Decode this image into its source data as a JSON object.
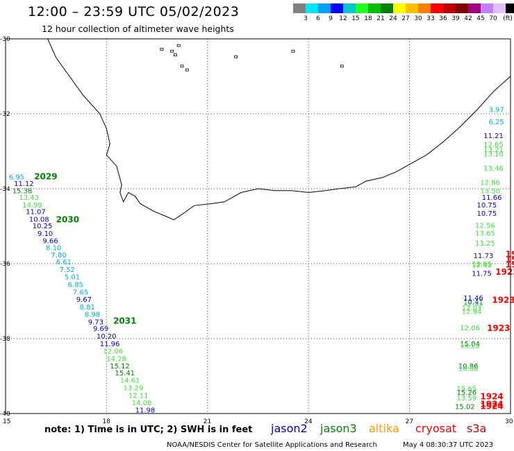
{
  "header": {
    "title": "12:00 – 23:59 UTC 05/02/2023",
    "subtitle": "12 hour collection of altimeter wave heights"
  },
  "legend": {
    "colors": [
      "#808080",
      "#00e5ff",
      "#00a0ff",
      "#0000ff",
      "#00c8c8",
      "#20ff20",
      "#00c000",
      "#008000",
      "#ffff00",
      "#ffc000",
      "#ff8000",
      "#ff0000",
      "#c00000",
      "#800000",
      "#a00080",
      "#c080ff",
      "#e0c0ff",
      "#000000"
    ],
    "labels": [
      "3",
      "6",
      "9",
      "12",
      "15",
      "18",
      "21",
      "24",
      "27",
      "30",
      "33",
      "36",
      "39",
      "42",
      "45",
      "70",
      "(ft)"
    ]
  },
  "axes": {
    "lon_ticks": [
      "15",
      "18",
      "21",
      "24",
      "27",
      "30"
    ],
    "lat_ticks": [
      "-30",
      "-32",
      "-34",
      "-36",
      "-38",
      "-40"
    ]
  },
  "colors": {
    "jason2": "#0000c8",
    "jason3": "#008000",
    "altika": "#ff9900",
    "cryosat": "#ff0000",
    "s3a": "#c80000",
    "lightgreen": "#40e040",
    "cyan": "#00b0e0"
  },
  "track_west": [
    {
      "v": "6.95",
      "c": "cyan",
      "lon": 15.1,
      "lat": -33.75
    },
    {
      "v": "11.12",
      "c": "jason2",
      "lon": 15.25,
      "lat": -33.93
    },
    {
      "v": "15.38",
      "c": "jason3",
      "lon": 15.2,
      "lat": -34.12
    },
    {
      "v": "13.43",
      "c": "lightgreen",
      "lon": 15.4,
      "lat": -34.3
    },
    {
      "v": "14.99",
      "c": "lightgreen",
      "lon": 15.5,
      "lat": -34.5
    },
    {
      "v": "11.07",
      "c": "jason2",
      "lon": 15.6,
      "lat": -34.68
    },
    {
      "v": "10.08",
      "c": "jason2",
      "lon": 15.7,
      "lat": -34.88
    },
    {
      "v": "10.25",
      "c": "jason2",
      "lon": 15.8,
      "lat": -35.06
    },
    {
      "v": "9.10",
      "c": "jason2",
      "lon": 15.95,
      "lat": -35.26
    },
    {
      "v": "9.66",
      "c": "jason2",
      "lon": 16.1,
      "lat": -35.45
    },
    {
      "v": "8.10",
      "c": "cyan",
      "lon": 16.2,
      "lat": -35.64
    },
    {
      "v": "7.80",
      "c": "cyan",
      "lon": 16.35,
      "lat": -35.83
    },
    {
      "v": "6.61",
      "c": "cyan",
      "lon": 16.5,
      "lat": -36.02
    },
    {
      "v": "7.52",
      "c": "cyan",
      "lon": 16.6,
      "lat": -36.22
    },
    {
      "v": "5.01",
      "c": "cyan",
      "lon": 16.75,
      "lat": -36.42
    },
    {
      "v": "6.85",
      "c": "cyan",
      "lon": 16.85,
      "lat": -36.62
    },
    {
      "v": "7.65",
      "c": "cyan",
      "lon": 17.0,
      "lat": -36.82
    },
    {
      "v": "9.67",
      "c": "jason2",
      "lon": 17.1,
      "lat": -37.02
    },
    {
      "v": "8.81",
      "c": "cyan",
      "lon": 17.2,
      "lat": -37.22
    },
    {
      "v": "8.98",
      "c": "cyan",
      "lon": 17.35,
      "lat": -37.42
    },
    {
      "v": "9.73",
      "c": "jason2",
      "lon": 17.45,
      "lat": -37.62
    },
    {
      "v": "9.69",
      "c": "jason2",
      "lon": 17.6,
      "lat": -37.8
    },
    {
      "v": "10.20",
      "c": "jason2",
      "lon": 17.7,
      "lat": -38.0
    },
    {
      "v": "11.96",
      "c": "jason2",
      "lon": 17.8,
      "lat": -38.2
    },
    {
      "v": "12.06",
      "c": "lightgreen",
      "lon": 17.9,
      "lat": -38.4
    },
    {
      "v": "14.28",
      "c": "lightgreen",
      "lon": 18.0,
      "lat": -38.6
    },
    {
      "v": "15.12",
      "c": "jason3",
      "lon": 18.1,
      "lat": -38.8
    },
    {
      "v": "15.41",
      "c": "jason3",
      "lon": 18.25,
      "lat": -38.98
    },
    {
      "v": "14.61",
      "c": "lightgreen",
      "lon": 18.4,
      "lat": -39.18
    },
    {
      "v": "13.29",
      "c": "lightgreen",
      "lon": 18.5,
      "lat": -39.38
    },
    {
      "v": "12.11",
      "c": "lightgreen",
      "lon": 18.65,
      "lat": -39.58
    },
    {
      "v": "14.08",
      "c": "lightgreen",
      "lon": 18.75,
      "lat": -39.78
    },
    {
      "v": "11.98",
      "c": "jason2",
      "lon": 18.85,
      "lat": -39.97
    }
  ],
  "track_west_times": [
    {
      "t": "2029",
      "lon": 15.85,
      "lat": -33.75
    },
    {
      "t": "2030",
      "lon": 16.5,
      "lat": -34.9
    },
    {
      "t": "2031",
      "lon": 18.2,
      "lat": -37.6
    }
  ],
  "track_east": [
    {
      "v": "3.97",
      "c": "cyan",
      "lon": 29.35,
      "lat": -31.95
    },
    {
      "v": "6.25",
      "c": "cyan",
      "lon": 29.35,
      "lat": -32.28
    },
    {
      "v": "11.21",
      "c": "jason2",
      "lon": 29.2,
      "lat": -32.65
    },
    {
      "v": "12.65",
      "c": "lightgreen",
      "lon": 29.2,
      "lat": -32.88
    },
    {
      "v": "13.21",
      "c": "lightgreen",
      "lon": 29.2,
      "lat": -33.02
    },
    {
      "v": "13.10",
      "c": "lightgreen",
      "lon": 29.2,
      "lat": -33.14
    },
    {
      "v": "13.46",
      "c": "lightgreen",
      "lon": 29.2,
      "lat": -33.52
    },
    {
      "v": "12.86",
      "c": "lightgreen",
      "lon": 29.1,
      "lat": -33.9
    },
    {
      "v": "13.50",
      "c": "lightgreen",
      "lon": 29.1,
      "lat": -34.12
    },
    {
      "v": "11.66",
      "c": "jason2",
      "lon": 29.15,
      "lat": -34.3
    },
    {
      "v": "10.75",
      "c": "jason2",
      "lon": 29.0,
      "lat": -34.5
    },
    {
      "v": "10.75",
      "c": "jason2",
      "lon": 29.0,
      "lat": -34.72
    },
    {
      "v": "12.56",
      "c": "lightgreen",
      "lon": 28.95,
      "lat": -35.05
    },
    {
      "v": "13.65",
      "c": "lightgreen",
      "lon": 28.95,
      "lat": -35.25
    },
    {
      "v": "13.25",
      "c": "lightgreen",
      "lon": 28.95,
      "lat": -35.52
    },
    {
      "v": "11.73",
      "c": "jason2",
      "lon": 28.9,
      "lat": -35.85
    },
    {
      "v": "12.65",
      "c": "lightgreen",
      "lon": 28.85,
      "lat": -36.07
    },
    {
      "v": "12.43",
      "c": "lightgreen",
      "lon": 28.85,
      "lat": -36.1
    },
    {
      "v": "11.75",
      "c": "jason2",
      "lon": 28.85,
      "lat": -36.32
    },
    {
      "v": "11.46",
      "c": "jason2",
      "lon": 28.6,
      "lat": -36.98
    },
    {
      "v": "10.41",
      "c": "jason2",
      "lon": 28.6,
      "lat": -37.08
    },
    {
      "v": "12.01",
      "c": "lightgreen",
      "lon": 28.6,
      "lat": -37.12
    },
    {
      "v": "12.03",
      "c": "lightgreen",
      "lon": 28.55,
      "lat": -37.25
    },
    {
      "v": "12.94",
      "c": "lightgreen",
      "lon": 28.55,
      "lat": -37.34
    },
    {
      "v": "12.06",
      "c": "lightgreen",
      "lon": 28.5,
      "lat": -37.78
    },
    {
      "v": "15.04",
      "c": "jason3",
      "lon": 28.5,
      "lat": -38.2
    },
    {
      "v": "15.28",
      "c": "lightgreen",
      "lon": 28.5,
      "lat": -38.25
    },
    {
      "v": "10.86",
      "c": "jason3",
      "lon": 28.45,
      "lat": -38.8
    },
    {
      "v": "10.86",
      "c": "lightgreen",
      "lon": 28.45,
      "lat": -38.86
    },
    {
      "v": "15.65",
      "c": "lightgreen",
      "lon": 28.4,
      "lat": -39.4
    },
    {
      "v": "15.26",
      "c": "jason3",
      "lon": 28.4,
      "lat": -39.5
    },
    {
      "v": "13.59",
      "c": "lightgreen",
      "lon": 28.4,
      "lat": -39.65
    },
    {
      "v": "15.02",
      "c": "jason3",
      "lon": 28.35,
      "lat": -39.88
    }
  ],
  "track_east_times": [
    {
      "t": "192",
      "lon": 29.85,
      "lat": -35.82
    },
    {
      "t": "192",
      "lon": 29.85,
      "lat": -35.96
    },
    {
      "t": "192",
      "lon": 29.85,
      "lat": -36.1
    },
    {
      "t": "1923",
      "lon": 29.55,
      "lat": -36.3
    },
    {
      "t": "1923",
      "lon": 29.45,
      "lat": -37.05
    },
    {
      "t": "1923",
      "lon": 29.3,
      "lat": -37.8
    },
    {
      "t": "1924",
      "lon": 29.1,
      "lat": -39.62
    },
    {
      "t": "1924",
      "lon": 29.1,
      "lat": -39.82
    },
    {
      "t": "1924",
      "lon": 29.1,
      "lat": -39.88
    }
  ],
  "note": "note:  1) Time is in UTC;  2) SWH is in feet",
  "satellites": [
    {
      "name": "jason2",
      "c": "jason2"
    },
    {
      "name": "jason3",
      "c": "jason3"
    },
    {
      "name": "altika",
      "c": "altika"
    },
    {
      "name": "cryosat",
      "c": "cryosat"
    },
    {
      "name": "s3a",
      "c": "s3a"
    }
  ],
  "footer": {
    "credit": "NOAA/NESDIS Center for Satellite Applications and Research",
    "time": "May  4 08:30:37 UTC 2023"
  }
}
